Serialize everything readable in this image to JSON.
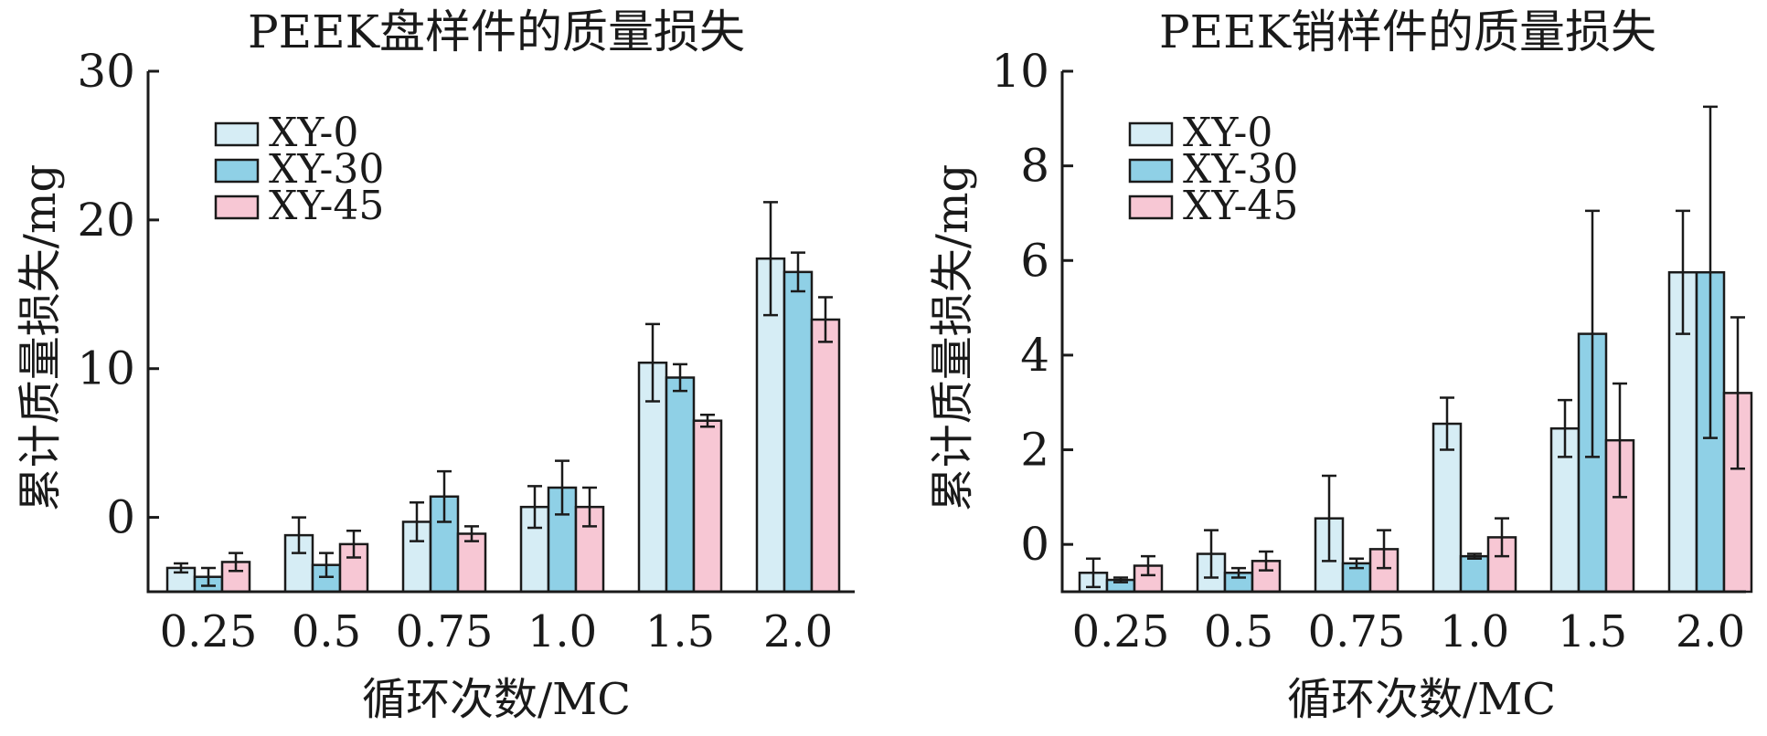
{
  "colors": {
    "XY-0": "#d6edf5",
    "XY-30": "#8fd0e6",
    "XY-45": "#f7c7d4"
  },
  "chart_data": [
    {
      "type": "bar",
      "title": "PEEK盘样件的质量损失",
      "xlabel": "循环次数/MC",
      "ylabel": "累计质量损失/mg",
      "categories": [
        "0.25",
        "0.5",
        "0.75",
        "1.0",
        "1.5",
        "2.0"
      ],
      "ylim": [
        -5,
        30
      ],
      "yticks": [
        0,
        10,
        20,
        30
      ],
      "legend_position": "top-left",
      "grid": false,
      "series": [
        {
          "name": "XY-0",
          "values": [
            -3.4,
            -1.2,
            -0.3,
            0.7,
            10.4,
            17.4
          ],
          "errors": [
            0.3,
            1.2,
            1.3,
            1.4,
            2.6,
            3.8
          ]
        },
        {
          "name": "XY-30",
          "values": [
            -4.0,
            -3.2,
            1.4,
            2.0,
            9.4,
            16.5
          ],
          "errors": [
            0.6,
            0.8,
            1.7,
            1.8,
            0.9,
            1.3
          ]
        },
        {
          "name": "XY-45",
          "values": [
            -3.0,
            -1.8,
            -1.1,
            0.7,
            6.5,
            13.3
          ],
          "errors": [
            0.6,
            0.9,
            0.5,
            1.3,
            0.4,
            1.5
          ]
        }
      ]
    },
    {
      "type": "bar",
      "title": "PEEK销样件的质量损失",
      "xlabel": "循环次数/MC",
      "ylabel": "累计质量损失/mg",
      "categories": [
        "0.25",
        "0.5",
        "0.75",
        "1.0",
        "1.5",
        "2.0"
      ],
      "ylim": [
        -1,
        10
      ],
      "yticks": [
        0,
        2,
        4,
        6,
        8,
        10
      ],
      "legend_position": "top-left",
      "grid": false,
      "series": [
        {
          "name": "XY-0",
          "values": [
            -0.6,
            -0.2,
            0.55,
            2.55,
            2.45,
            5.75
          ],
          "errors": [
            0.3,
            0.5,
            0.9,
            0.55,
            0.6,
            1.3
          ]
        },
        {
          "name": "XY-30",
          "values": [
            -0.75,
            -0.6,
            -0.4,
            -0.25,
            4.45,
            5.75
          ],
          "errors": [
            0.05,
            0.1,
            0.1,
            0.05,
            2.6,
            3.5
          ]
        },
        {
          "name": "XY-45",
          "values": [
            -0.45,
            -0.35,
            -0.1,
            0.15,
            2.2,
            3.2
          ],
          "errors": [
            0.2,
            0.2,
            0.4,
            0.4,
            1.2,
            1.6
          ]
        }
      ]
    }
  ]
}
